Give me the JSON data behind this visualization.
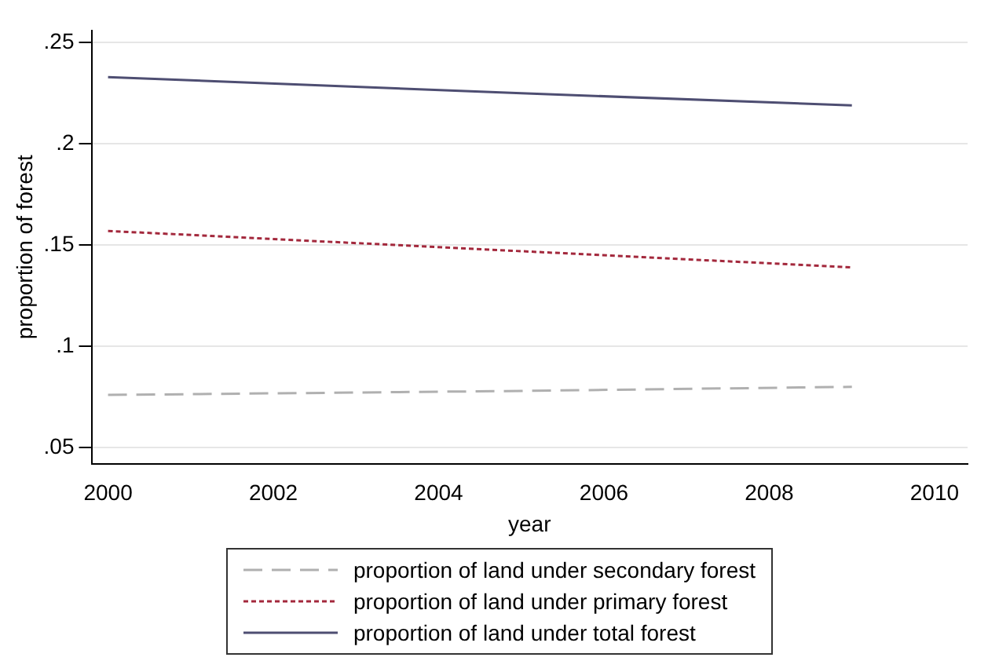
{
  "chart_data": {
    "type": "line",
    "xlabel": "year",
    "ylabel": "proportion of forest",
    "x": [
      2000,
      2005,
      2009
    ],
    "series": [
      {
        "name": "proportion of land under secondary forest",
        "color": "#b0b0b0",
        "line_style": "dashed",
        "values": [
          0.076,
          0.078,
          0.08
        ]
      },
      {
        "name": "proportion of land under primary forest",
        "color": "#a3283c",
        "line_style": "dotted",
        "values": [
          0.157,
          0.147,
          0.139
        ]
      },
      {
        "name": "proportion of land under total forest",
        "color": "#4e4e72",
        "line_style": "solid",
        "values": [
          0.233,
          0.225,
          0.219
        ]
      }
    ],
    "xlim": [
      1999.8,
      2010.4
    ],
    "xticks": [
      2000,
      2002,
      2004,
      2006,
      2008,
      2010
    ],
    "ylim": [
      0.042,
      0.256
    ],
    "yticks": [
      {
        "value": 0.05,
        "label": ".05"
      },
      {
        "value": 0.1,
        "label": ".1"
      },
      {
        "value": 0.15,
        "label": ".15"
      },
      {
        "value": 0.2,
        "label": ".2"
      },
      {
        "value": 0.25,
        "label": ".25"
      }
    ],
    "grid": "y",
    "legend": "bottom",
    "marker": "none"
  }
}
